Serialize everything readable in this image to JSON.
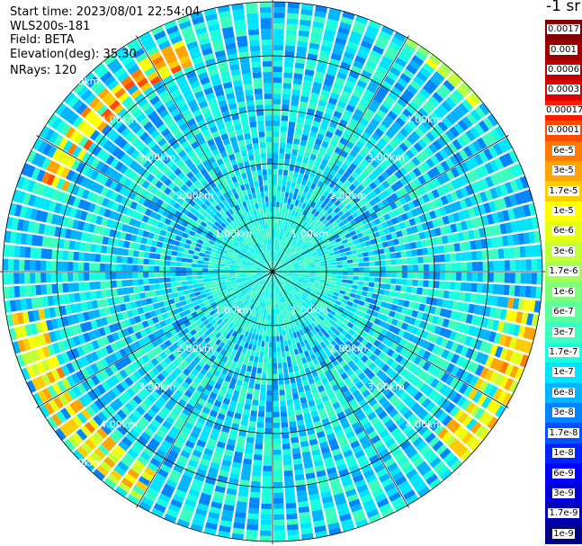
{
  "info": {
    "start_time": "Start time: 2023/08/01 22:54:04",
    "instrument": "WLS200s-181",
    "field": "Field: BETA",
    "elevation": "Elevation(deg): 35.30",
    "nrays": "NRays: 120"
  },
  "colorbar": {
    "unit": "-1 sr",
    "labels": [
      "0.0017",
      "0.001",
      "0.0006",
      "0.0003",
      "0.00017",
      "0.0001",
      "6e-5",
      "3e-5",
      "1.7e-5",
      "1e-5",
      "6e-6",
      "3e-6",
      "1.7e-6",
      "1e-6",
      "6e-7",
      "3e-7",
      "1.7e-7",
      "1e-7",
      "6e-8",
      "3e-8",
      "1.7e-8",
      "1e-8",
      "6e-9",
      "3e-9",
      "1.7e-9",
      "1e-9"
    ],
    "colors": [
      "#7f0000",
      "#9a0000",
      "#c00000",
      "#e00000",
      "#ff1a00",
      "#ff4a00",
      "#ff7a00",
      "#ffa400",
      "#ffcc00",
      "#ffff00",
      "#e4ff14",
      "#c2ff36",
      "#a0ff58",
      "#7eff7a",
      "#5cff9c",
      "#3affbe",
      "#18ffe0",
      "#00e4ff",
      "#00b4ff",
      "#0084ff",
      "#0054ff",
      "#0024ff",
      "#0000ff",
      "#0000d6",
      "#0000ae",
      "#000086"
    ]
  },
  "chart_data": {
    "type": "heatmap",
    "projection": "PPI polar scan",
    "field": "BETA",
    "instrument": "WLS200s-181",
    "start_time": "2023/08/01 22:54:04",
    "elevation_deg": 35.3,
    "n_rays": 120,
    "max_range_km": 5.05,
    "range_rings_km": [
      1.0,
      2.0,
      3.0,
      4.0,
      5.0
    ],
    "ring_labels": [
      "1.00km",
      "2.00km",
      "3.00km",
      "4.00km",
      "5.00km"
    ],
    "spoke_step_deg": 30,
    "color_scale": "log",
    "value_range": [
      1e-09,
      0.0017
    ],
    "background_level": 1e-07,
    "notable_features": [
      {
        "from_deg": 290,
        "to_deg": 340,
        "range_km": [
          4.1,
          4.6
        ],
        "value": 2e-05
      },
      {
        "from_deg": 95,
        "to_deg": 135,
        "range_km": [
          4.3,
          5.0
        ],
        "value": 1e-05
      },
      {
        "from_deg": 210,
        "to_deg": 260,
        "range_km": [
          4.3,
          4.9
        ],
        "value": 1e-05
      },
      {
        "from_deg": 30,
        "to_deg": 50,
        "range_km": [
          4.8,
          5.05
        ],
        "value": 3e-06
      }
    ]
  }
}
